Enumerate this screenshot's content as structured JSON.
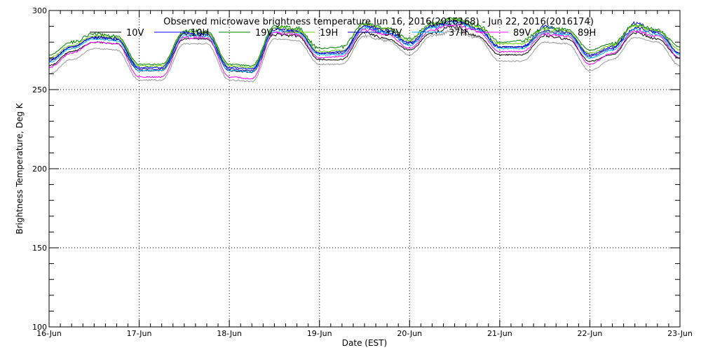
{
  "chart_data": {
    "type": "line",
    "title": "Observed microwave brightness temperature Jun 16, 2016(2016168) - Jun 22, 2016(2016174)",
    "xlabel": "Date (EST)",
    "ylabel": "Brightness Temperature, Deg K",
    "xlim": [
      0,
      7
    ],
    "ylim": [
      100,
      300
    ],
    "yticks": [
      100,
      150,
      200,
      250,
      300
    ],
    "xtick_labels": [
      "16-Jun",
      "17-Jun",
      "18-Jun",
      "19-Jun",
      "20-Jun",
      "21-Jun",
      "22-Jun",
      "23-Jun"
    ],
    "grid": "dotted",
    "legend_position": "top",
    "x": [
      0,
      0.25,
      0.5,
      0.75,
      1.0,
      1.25,
      1.5,
      1.75,
      2.0,
      2.25,
      2.5,
      2.75,
      3.0,
      3.25,
      3.5,
      3.75,
      4.0,
      4.25,
      4.5,
      4.75,
      5.0,
      5.25,
      5.5,
      5.75,
      6.0,
      6.25,
      6.5,
      6.75,
      7.0
    ],
    "series": [
      {
        "name": "10V",
        "color": "#000000",
        "values": [
          265,
          274,
          280,
          279,
          262,
          262,
          282,
          282,
          262,
          261,
          285,
          284,
          269,
          269,
          286,
          282,
          275,
          286,
          290,
          284,
          272,
          272,
          284,
          282,
          268,
          272,
          286,
          282,
          270
        ]
      },
      {
        "name": "10H",
        "color": "#0000ff",
        "values": [
          268,
          277,
          283,
          282,
          264,
          264,
          286,
          286,
          264,
          263,
          289,
          287,
          273,
          273,
          290,
          286,
          279,
          290,
          294,
          288,
          277,
          277,
          290,
          286,
          271,
          276,
          292,
          287,
          273
        ]
      },
      {
        "name": "19V",
        "color": "#008000",
        "values": [
          272,
          280,
          285,
          284,
          266,
          266,
          287,
          287,
          266,
          265,
          290,
          289,
          276,
          277,
          292,
          289,
          282,
          292,
          295,
          291,
          280,
          281,
          289,
          288,
          275,
          279,
          291,
          288,
          277
        ]
      },
      {
        "name": "19H",
        "color": "#66cc00",
        "values": [
          270,
          278,
          284,
          283,
          265,
          265,
          286,
          286,
          265,
          264,
          289,
          288,
          274,
          275,
          291,
          288,
          281,
          291,
          294,
          290,
          279,
          279,
          288,
          287,
          273,
          278,
          290,
          287,
          275
        ]
      },
      {
        "name": "37V",
        "color": "#0000aa",
        "values": [
          269,
          277,
          283,
          282,
          263,
          263,
          285,
          285,
          263,
          262,
          288,
          287,
          273,
          274,
          290,
          287,
          280,
          290,
          293,
          289,
          277,
          277,
          287,
          286,
          272,
          277,
          289,
          286,
          273
        ]
      },
      {
        "name": "37H",
        "color": "#00aaff",
        "values": [
          267,
          276,
          282,
          281,
          262,
          262,
          284,
          284,
          262,
          261,
          287,
          286,
          272,
          272,
          289,
          286,
          278,
          289,
          292,
          288,
          276,
          276,
          286,
          285,
          270,
          275,
          288,
          285,
          272
        ]
      },
      {
        "name": "89V",
        "color": "#ff00ff",
        "values": [
          264,
          273,
          280,
          279,
          258,
          258,
          283,
          283,
          258,
          257,
          286,
          285,
          270,
          271,
          288,
          285,
          276,
          288,
          291,
          287,
          274,
          274,
          285,
          284,
          266,
          273,
          287,
          284,
          270
        ]
      },
      {
        "name": "89H",
        "color": "#999999",
        "values": [
          260,
          269,
          276,
          275,
          256,
          256,
          279,
          279,
          256,
          255,
          282,
          281,
          266,
          266,
          284,
          281,
          272,
          284,
          287,
          283,
          268,
          268,
          280,
          279,
          262,
          269,
          283,
          280,
          265
        ]
      }
    ]
  }
}
